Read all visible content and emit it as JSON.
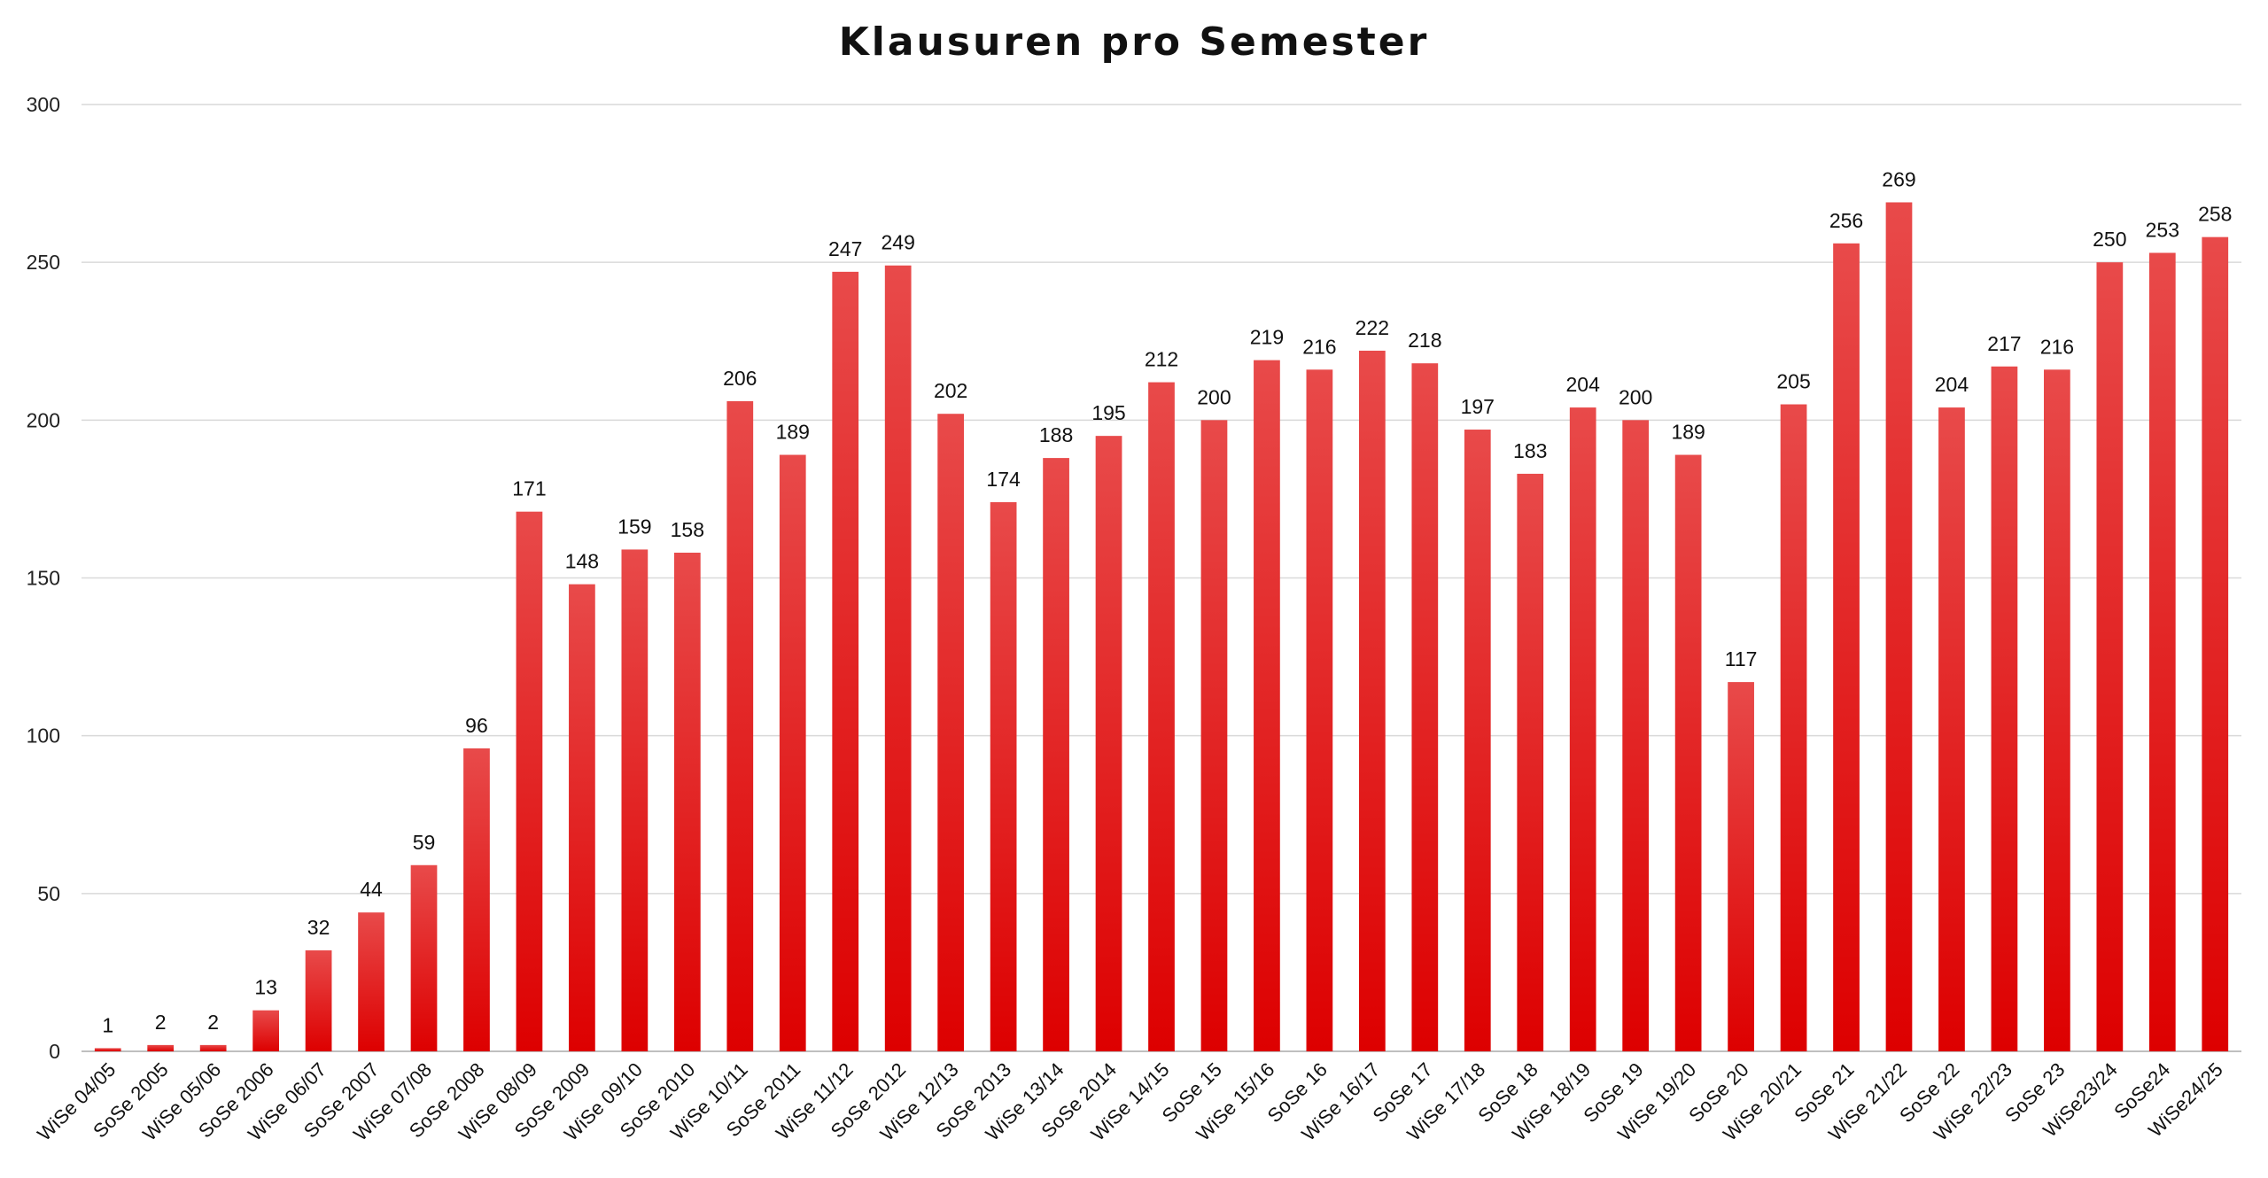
{
  "chart_data": {
    "type": "bar",
    "title": "Klausuren pro Semester",
    "xlabel": "",
    "ylabel": "",
    "ylim": [
      0,
      300
    ],
    "yticks": [
      0,
      50,
      100,
      150,
      200,
      250,
      300
    ],
    "grid": true,
    "legend": "none",
    "colors": {
      "bar_top": "#e84a4a",
      "bar_bottom": "#dd0000",
      "grid": "#d9d9d9"
    },
    "categories": [
      "WiSe 04/05",
      "SoSe 2005",
      "WiSe 05/06",
      "SoSe 2006",
      "WiSe 06/07",
      "SoSe 2007",
      "WiSe 07/08",
      "SoSe 2008",
      "WiSe 08/09",
      "SoSe 2009",
      "WiSe 09/10",
      "SoSe 2010",
      "WiSe 10/11",
      "SoSe 2011",
      "WiSe 11/12",
      "SoSe 2012",
      "WiSe 12/13",
      "SoSe 2013",
      "WiSe 13/14",
      "SoSe 2014",
      "WiSe 14/15",
      "SoSe 15",
      "WiSe 15/16",
      "SoSe 16",
      "WiSe 16/17",
      "SoSe 17",
      "WiSe 17/18",
      "SoSe 18",
      "WiSe 18/19",
      "SoSe 19",
      "WiSe 19/20",
      "SoSe 20",
      "WiSe 20/21",
      "SoSe 21",
      "WiSe 21/22",
      "SoSe 22",
      "WiSe 22/23",
      "SoSe 23",
      "WiSe23/24",
      "SoSe24",
      "WiSe24/25"
    ],
    "values": [
      1,
      2,
      2,
      13,
      32,
      44,
      59,
      96,
      171,
      148,
      159,
      158,
      206,
      189,
      247,
      249,
      202,
      174,
      188,
      195,
      212,
      200,
      219,
      216,
      222,
      218,
      197,
      183,
      204,
      200,
      189,
      117,
      205,
      256,
      269,
      204,
      217,
      216,
      250,
      253,
      258
    ]
  }
}
